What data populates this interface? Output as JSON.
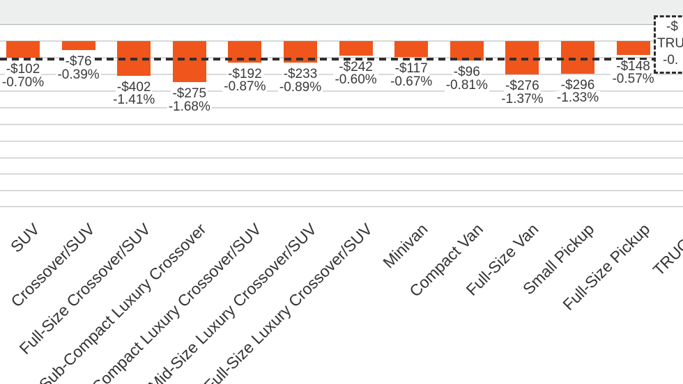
{
  "chart_data": {
    "type": "bar",
    "title": "",
    "description": "Cropped column chart of value change by vehicle segment; bars extend downward (negative values), scaled by percent change",
    "categories": [
      "SUV",
      "Crossover/SUV",
      "Full-Size Crossover/SUV",
      "Sub-Compact Luxury Crossover",
      "Compact Luxury Crossover/SUV",
      "Mid-Size Luxury Crossover/SUV",
      "Full-Size Luxury Crossover/SUV",
      "Minivan",
      "Compact Van",
      "Full-Size Van",
      "Small Pickup",
      "Full-Size Pickup",
      "TRUCKS"
    ],
    "series": [
      {
        "name": "Change ($)",
        "labels": [
          "-$102",
          "-$76",
          "-$402",
          "-$275",
          "-$192",
          "-$233",
          "-$242",
          "-$117",
          "-$96",
          "-$276",
          "-$296",
          "-$148",
          ""
        ]
      },
      {
        "name": "Change (%)",
        "labels": [
          "-0.70%",
          "-0.39%",
          "-1.41%",
          "-1.68%",
          "-0.87%",
          "-0.89%",
          "-0.60%",
          "-0.67%",
          "-0.81%",
          "-1.37%",
          "-1.33%",
          "-0.57%",
          ""
        ],
        "values": [
          -0.7,
          -0.39,
          -1.41,
          -1.68,
          -0.87,
          -0.89,
          -0.6,
          -0.67,
          -0.81,
          -1.37,
          -1.33,
          -0.57,
          null
        ]
      }
    ],
    "average_line": {
      "style": "dashed"
    },
    "annotation_box": {
      "style": "dashed-border",
      "clipped_at_right": true,
      "lines": [
        "-$",
        "TRUCKS",
        "-0."
      ]
    },
    "grid": "horizontal",
    "legend": "none",
    "axis_tick_labels_visible": false
  },
  "colors": {
    "bar": "#F0551B",
    "average_line": "#2E2E2E",
    "gridline": "#D6DAD9",
    "top_band": "#EDEFEE",
    "label_text": "#3A3A3A"
  }
}
